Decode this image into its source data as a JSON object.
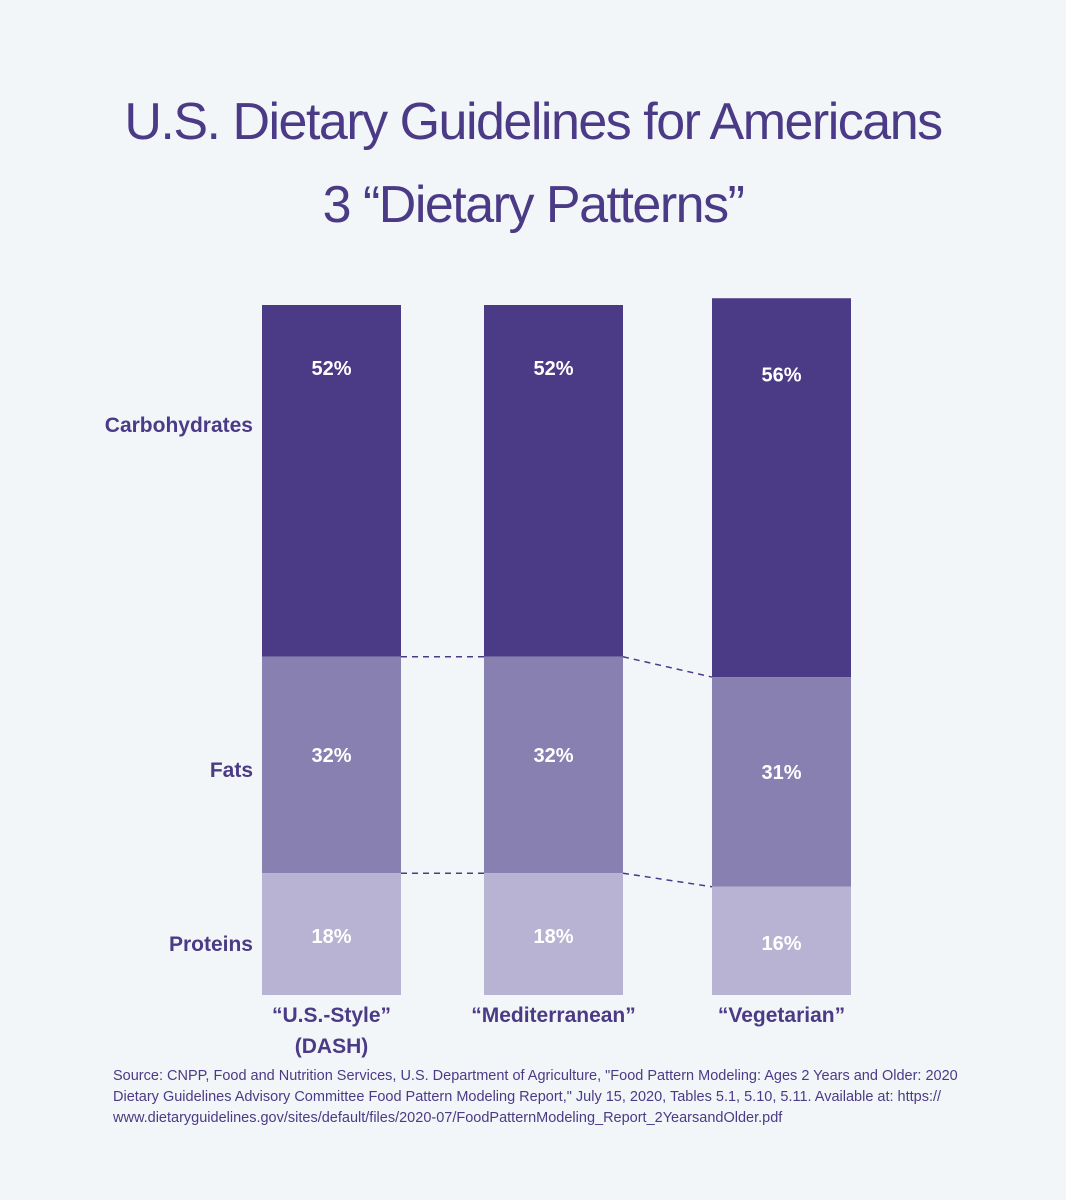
{
  "chart_data": {
    "type": "bar",
    "stacked": true,
    "title": [
      "U.S. Dietary Guidelines for Americans",
      "3 “Dietary Patterns”"
    ],
    "categories": [
      [
        "“U.S.-Style”",
        "(DASH)"
      ],
      [
        "“Mediterranean”"
      ],
      [
        "“Vegetarian”"
      ]
    ],
    "series": [
      {
        "name": "Carbohydrates",
        "values": [
          52,
          52,
          56
        ],
        "labels": [
          "52%",
          "52%",
          "56%"
        ],
        "color": "#4b3a86"
      },
      {
        "name": "Fats",
        "values": [
          32,
          32,
          31
        ],
        "labels": [
          "32%",
          "32%",
          "31%"
        ],
        "color": "#8880b0"
      },
      {
        "name": "Proteins",
        "values": [
          18,
          18,
          16
        ],
        "labels": [
          "18%",
          "18%",
          "16%"
        ],
        "color": "#b8b3d3"
      }
    ],
    "ylim": [
      0,
      102
    ],
    "xlabel": "",
    "ylabel": "",
    "grid": false,
    "legend": "left"
  },
  "source": "Source: CNPP, Food and Nutrition Services, U.S. Department of Agriculture, \"Food Pattern Modeling: Ages 2 Years and Older: 2020 Dietary Guidelines Advisory Committee Food Pattern Modeling Report,\" July 15, 2020, Tables 5.1, 5.10, 5.11. Available at: https:// www.dietaryguidelines.gov/sites/default/files/2020-07/FoodPatternModeling_Report_2YearsandOlder.pdf"
}
